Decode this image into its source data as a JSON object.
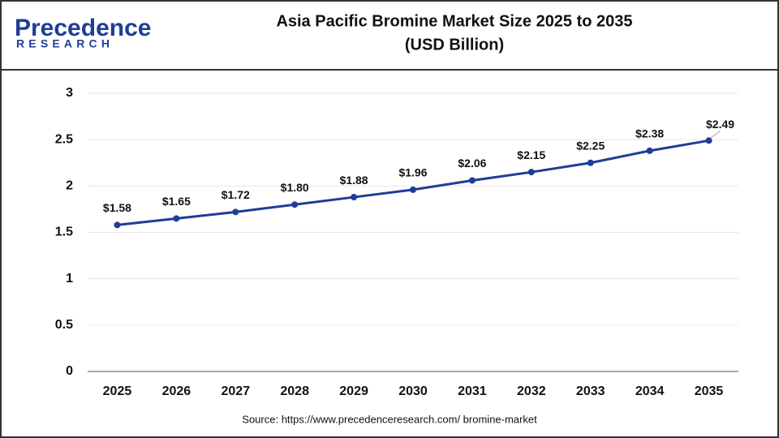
{
  "chart_data": {
    "type": "line",
    "logo": {
      "name": "Precedence",
      "tagline": "RESEARCH"
    },
    "title": "Asia Pacific Bromine Market Size 2025 to 2035",
    "subtitle": "(USD Billion)",
    "source": "Source: https://www.precedenceresearch.com/ bromine-market",
    "categories": [
      "2025",
      "2026",
      "2027",
      "2028",
      "2029",
      "2030",
      "2031",
      "2032",
      "2033",
      "2034",
      "2035"
    ],
    "series": [
      {
        "name": "Market Size",
        "color": "#1f3d99",
        "values": [
          1.58,
          1.65,
          1.72,
          1.8,
          1.88,
          1.96,
          2.06,
          2.15,
          2.25,
          2.38,
          2.49
        ],
        "value_labels": [
          "$1.58",
          "$1.65",
          "$1.72",
          "$1.80",
          "$1.88",
          "$1.96",
          "$2.06",
          "$2.15",
          "$2.25",
          "$2.38",
          "$2.49"
        ]
      }
    ],
    "ylim": [
      0,
      3
    ],
    "yticks": [
      0,
      0.5,
      1,
      1.5,
      2,
      2.5,
      3
    ],
    "grid": true
  }
}
